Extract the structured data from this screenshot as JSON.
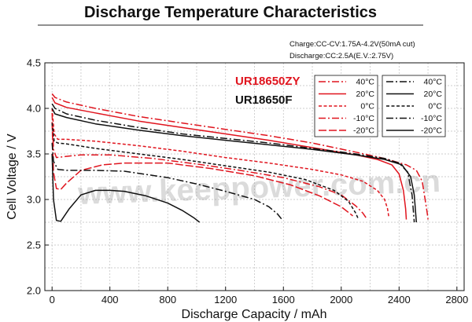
{
  "chart_data": {
    "type": "line",
    "title": "Discharge Temperature Characteristics",
    "conditions": {
      "charge": "Charge:CC-CV:1.75A-4.2V(50mA cut)",
      "discharge": "Discharge:CC:2.5A(E.V.:2.75V)"
    },
    "xlabel": "Discharge  Capacity  /  mAh",
    "ylabel": "Cell  Voltage  /  V",
    "xlim": [
      -50,
      2850
    ],
    "ylim": [
      2.0,
      4.5
    ],
    "xticks": [
      "0",
      "400",
      "800",
      "1200",
      "1600",
      "2000",
      "2400",
      "2800"
    ],
    "yticks": [
      "2.0",
      "2.5",
      "3.0",
      "3.5",
      "4.0",
      "4.5"
    ],
    "grid": true,
    "legend_placement": "top-right",
    "watermark": "www.keeppower.com.cn",
    "products": [
      {
        "name": "UR18650ZY",
        "color": "#e0141e"
      },
      {
        "name": "UR18650F",
        "color": "#111111"
      }
    ],
    "series": [
      {
        "name": "40°C",
        "product": "UR18650ZY",
        "style": "dashdot",
        "points": [
          [
            0,
            4.16
          ],
          [
            20,
            4.12
          ],
          [
            100,
            4.07
          ],
          [
            300,
            4.0
          ],
          [
            600,
            3.91
          ],
          [
            900,
            3.84
          ],
          [
            1200,
            3.77
          ],
          [
            1500,
            3.7
          ],
          [
            1800,
            3.62
          ],
          [
            2100,
            3.52
          ],
          [
            2300,
            3.45
          ],
          [
            2450,
            3.38
          ],
          [
            2520,
            3.32
          ],
          [
            2560,
            3.2
          ],
          [
            2580,
            3.0
          ],
          [
            2595,
            2.85
          ],
          [
            2600,
            2.78
          ]
        ]
      },
      {
        "name": "20°C",
        "product": "UR18650ZY",
        "style": "solid",
        "points": [
          [
            0,
            4.12
          ],
          [
            20,
            4.06
          ],
          [
            100,
            4.01
          ],
          [
            300,
            3.95
          ],
          [
            600,
            3.86
          ],
          [
            900,
            3.79
          ],
          [
            1200,
            3.72
          ],
          [
            1500,
            3.65
          ],
          [
            1800,
            3.57
          ],
          [
            2100,
            3.49
          ],
          [
            2250,
            3.44
          ],
          [
            2350,
            3.38
          ],
          [
            2400,
            3.28
          ],
          [
            2430,
            3.1
          ],
          [
            2445,
            2.9
          ],
          [
            2450,
            2.78
          ]
        ]
      },
      {
        "name": "0°C",
        "product": "UR18650ZY",
        "style": "dashed",
        "points": [
          [
            0,
            4.0
          ],
          [
            15,
            3.72
          ],
          [
            40,
            3.66
          ],
          [
            100,
            3.66
          ],
          [
            300,
            3.64
          ],
          [
            600,
            3.59
          ],
          [
            900,
            3.53
          ],
          [
            1200,
            3.46
          ],
          [
            1500,
            3.4
          ],
          [
            1800,
            3.33
          ],
          [
            2000,
            3.27
          ],
          [
            2150,
            3.2
          ],
          [
            2250,
            3.1
          ],
          [
            2300,
            3.0
          ],
          [
            2320,
            2.9
          ],
          [
            2330,
            2.8
          ]
        ]
      },
      {
        "name": "-10°C",
        "product": "UR18650ZY",
        "style": "dashdot",
        "points": [
          [
            0,
            3.95
          ],
          [
            10,
            3.55
          ],
          [
            30,
            3.46
          ],
          [
            80,
            3.47
          ],
          [
            200,
            3.49
          ],
          [
            400,
            3.49
          ],
          [
            700,
            3.45
          ],
          [
            1000,
            3.39
          ],
          [
            1300,
            3.32
          ],
          [
            1600,
            3.24
          ],
          [
            1850,
            3.14
          ],
          [
            2000,
            3.05
          ],
          [
            2100,
            2.93
          ],
          [
            2150,
            2.85
          ],
          [
            2180,
            2.78
          ]
        ]
      },
      {
        "name": "-20°C",
        "product": "UR18650ZY",
        "style": "longdash",
        "points": [
          [
            0,
            3.85
          ],
          [
            10,
            3.3
          ],
          [
            30,
            3.12
          ],
          [
            60,
            3.11
          ],
          [
            100,
            3.18
          ],
          [
            200,
            3.32
          ],
          [
            350,
            3.38
          ],
          [
            500,
            3.4
          ],
          [
            800,
            3.4
          ],
          [
            1100,
            3.34
          ],
          [
            1400,
            3.26
          ],
          [
            1650,
            3.16
          ],
          [
            1850,
            3.04
          ],
          [
            2000,
            2.92
          ],
          [
            2080,
            2.82
          ]
        ]
      },
      {
        "name": "40°C",
        "product": "UR18650F",
        "style": "dashdot",
        "points": [
          [
            0,
            4.05
          ],
          [
            20,
            4.0
          ],
          [
            100,
            3.94
          ],
          [
            300,
            3.87
          ],
          [
            600,
            3.79
          ],
          [
            900,
            3.72
          ],
          [
            1200,
            3.67
          ],
          [
            1500,
            3.62
          ],
          [
            1800,
            3.56
          ],
          [
            2100,
            3.5
          ],
          [
            2300,
            3.45
          ],
          [
            2400,
            3.4
          ],
          [
            2460,
            3.3
          ],
          [
            2490,
            3.05
          ],
          [
            2500,
            2.85
          ],
          [
            2505,
            2.75
          ]
        ]
      },
      {
        "name": "20°C",
        "product": "UR18650F",
        "style": "solid",
        "points": [
          [
            0,
            4.0
          ],
          [
            20,
            3.94
          ],
          [
            100,
            3.9
          ],
          [
            300,
            3.83
          ],
          [
            600,
            3.76
          ],
          [
            900,
            3.7
          ],
          [
            1200,
            3.65
          ],
          [
            1500,
            3.6
          ],
          [
            1800,
            3.55
          ],
          [
            2100,
            3.49
          ],
          [
            2300,
            3.44
          ],
          [
            2420,
            3.38
          ],
          [
            2480,
            3.25
          ],
          [
            2505,
            3.05
          ],
          [
            2515,
            2.85
          ],
          [
            2520,
            2.75
          ]
        ]
      },
      {
        "name": "0°C",
        "product": "UR18650F",
        "style": "dashed",
        "points": [
          [
            0,
            3.84
          ],
          [
            15,
            3.64
          ],
          [
            40,
            3.62
          ],
          [
            100,
            3.61
          ],
          [
            300,
            3.56
          ],
          [
            600,
            3.5
          ],
          [
            900,
            3.44
          ],
          [
            1200,
            3.37
          ],
          [
            1500,
            3.3
          ],
          [
            1750,
            3.22
          ],
          [
            1950,
            3.1
          ],
          [
            2050,
            2.98
          ],
          [
            2100,
            2.85
          ],
          [
            2120,
            2.78
          ]
        ]
      },
      {
        "name": "-10°C",
        "product": "UR18650F",
        "style": "dashdot",
        "points": [
          [
            0,
            3.62
          ],
          [
            10,
            3.42
          ],
          [
            40,
            3.33
          ],
          [
            100,
            3.32
          ],
          [
            300,
            3.32
          ],
          [
            500,
            3.31
          ],
          [
            800,
            3.24
          ],
          [
            1000,
            3.17
          ],
          [
            1200,
            3.09
          ],
          [
            1400,
            3.0
          ],
          [
            1500,
            2.92
          ],
          [
            1560,
            2.84
          ],
          [
            1590,
            2.78
          ]
        ]
      },
      {
        "name": "-20°C",
        "product": "UR18650F",
        "style": "solid",
        "points": [
          [
            0,
            3.5
          ],
          [
            10,
            3.0
          ],
          [
            30,
            2.77
          ],
          [
            60,
            2.76
          ],
          [
            120,
            2.9
          ],
          [
            200,
            3.05
          ],
          [
            300,
            3.1
          ],
          [
            400,
            3.1
          ],
          [
            500,
            3.09
          ],
          [
            650,
            3.04
          ],
          [
            800,
            2.96
          ],
          [
            900,
            2.88
          ],
          [
            980,
            2.8
          ],
          [
            1020,
            2.75
          ]
        ]
      }
    ]
  }
}
